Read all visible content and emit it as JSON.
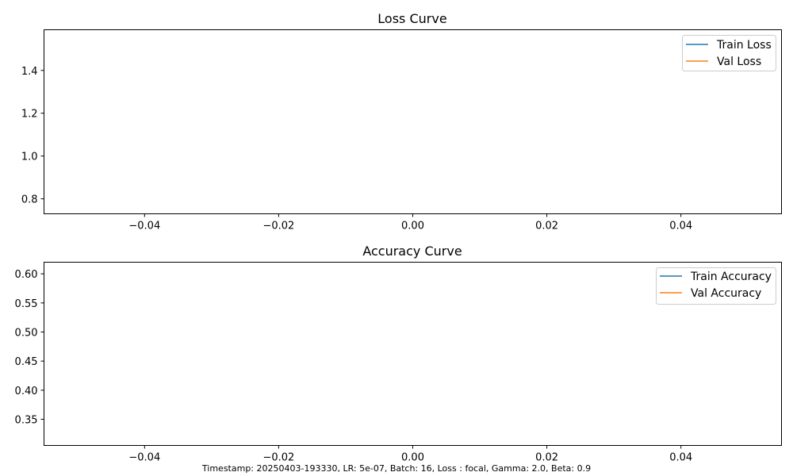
{
  "footer_text": "Timestamp: 20250403-193330, LR: 5e-07, Batch: 16, Loss : focal, Gamma: 2.0, Beta: 0.9",
  "chart_data": [
    {
      "type": "line",
      "title": "Loss Curve",
      "xlabel": "",
      "ylabel": "",
      "xlim": [
        -0.055,
        0.055
      ],
      "ylim": [
        0.73,
        1.59
      ],
      "xticks": [
        -0.04,
        -0.02,
        0.0,
        0.02,
        0.04
      ],
      "xtick_labels": [
        "−0.04",
        "−0.02",
        "0.00",
        "0.02",
        "0.04"
      ],
      "yticks": [
        0.8,
        1.0,
        1.2,
        1.4
      ],
      "ytick_labels": [
        "0.8",
        "1.0",
        "1.2",
        "1.4"
      ],
      "grid": false,
      "legend_position": "top-right",
      "series": [
        {
          "name": "Train Loss",
          "color": "#1f77b4",
          "x": [],
          "y": []
        },
        {
          "name": "Val Loss",
          "color": "#ff7f0e",
          "x": [],
          "y": []
        }
      ]
    },
    {
      "type": "line",
      "title": "Accuracy Curve",
      "xlabel": "",
      "ylabel": "",
      "xlim": [
        -0.055,
        0.055
      ],
      "ylim": [
        0.305,
        0.62
      ],
      "xticks": [
        -0.04,
        -0.02,
        0.0,
        0.02,
        0.04
      ],
      "xtick_labels": [
        "−0.04",
        "−0.02",
        "0.00",
        "0.02",
        "0.04"
      ],
      "yticks": [
        0.35,
        0.4,
        0.45,
        0.5,
        0.55,
        0.6
      ],
      "ytick_labels": [
        "0.35",
        "0.40",
        "0.45",
        "0.50",
        "0.55",
        "0.60"
      ],
      "grid": false,
      "legend_position": "top-right",
      "series": [
        {
          "name": "Train Accuracy",
          "color": "#1f77b4",
          "x": [],
          "y": []
        },
        {
          "name": "Val Accuracy",
          "color": "#ff7f0e",
          "x": [],
          "y": []
        }
      ]
    }
  ]
}
